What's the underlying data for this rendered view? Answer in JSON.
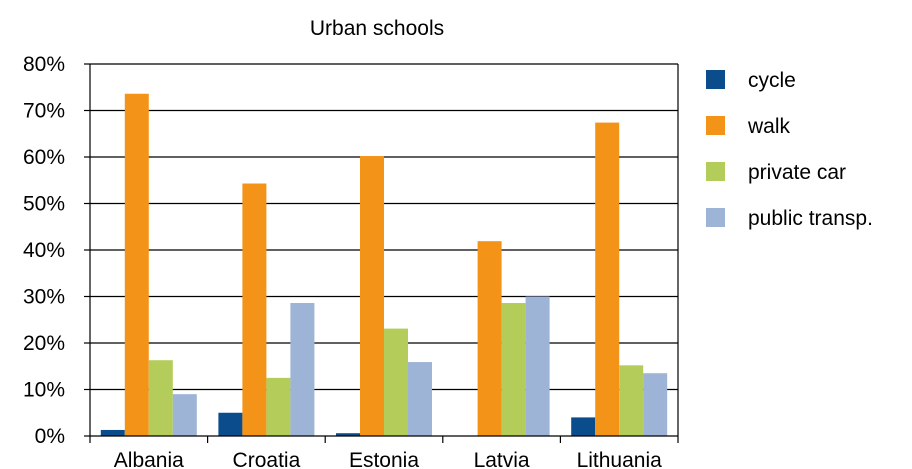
{
  "chart_data": {
    "type": "bar",
    "title": "Urban schools",
    "xlabel": "",
    "ylabel": "",
    "categories": [
      "Albania",
      "Croatia",
      "Estonia",
      "Latvia",
      "Lithuania"
    ],
    "series": [
      {
        "name": "cycle",
        "color": "#0a4c8c",
        "values": [
          1.3,
          5.0,
          0.6,
          0.0,
          4.0
        ]
      },
      {
        "name": "walk",
        "color": "#f39418",
        "values": [
          73.6,
          54.3,
          60.2,
          41.9,
          67.4
        ]
      },
      {
        "name": "private car",
        "color": "#b4cd5a",
        "values": [
          16.3,
          12.5,
          23.1,
          28.6,
          15.2
        ]
      },
      {
        "name": "public transp.",
        "color": "#9db4d6",
        "values": [
          9.0,
          28.6,
          15.9,
          30.0,
          13.5
        ]
      }
    ],
    "ylim": [
      0,
      80
    ],
    "yticks": [
      "0%",
      "10%",
      "20%",
      "30%",
      "40%",
      "50%",
      "60%",
      "70%",
      "80%"
    ],
    "grid": true,
    "legend_position": "right"
  }
}
